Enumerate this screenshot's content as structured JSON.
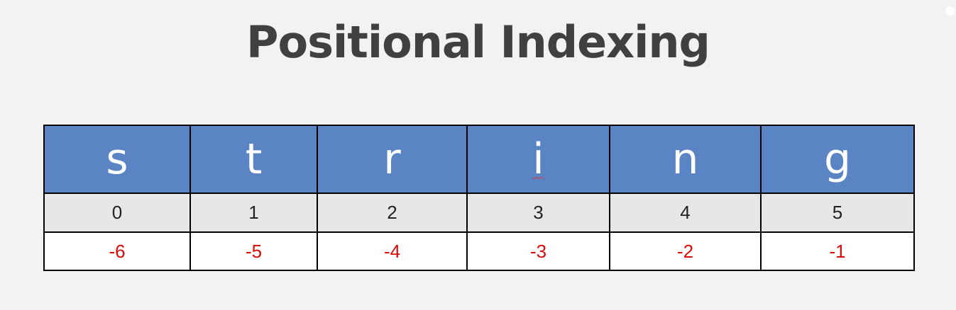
{
  "title": "Positional Indexing",
  "table": {
    "characters": [
      "s",
      "t",
      "r",
      "i",
      "n",
      "g"
    ],
    "positive_indices": [
      "0",
      "1",
      "2",
      "3",
      "4",
      "5"
    ],
    "negative_indices": [
      "-6",
      "-5",
      "-4",
      "-3",
      "-2",
      "-1"
    ]
  },
  "colors": {
    "background": "#f2f2f2",
    "title_text": "#404040",
    "header_fill": "#5b84c5",
    "positive_row_fill": "#e7e7e7",
    "negative_index_text": "#dd0a0a",
    "grid_lines": "#000000"
  }
}
